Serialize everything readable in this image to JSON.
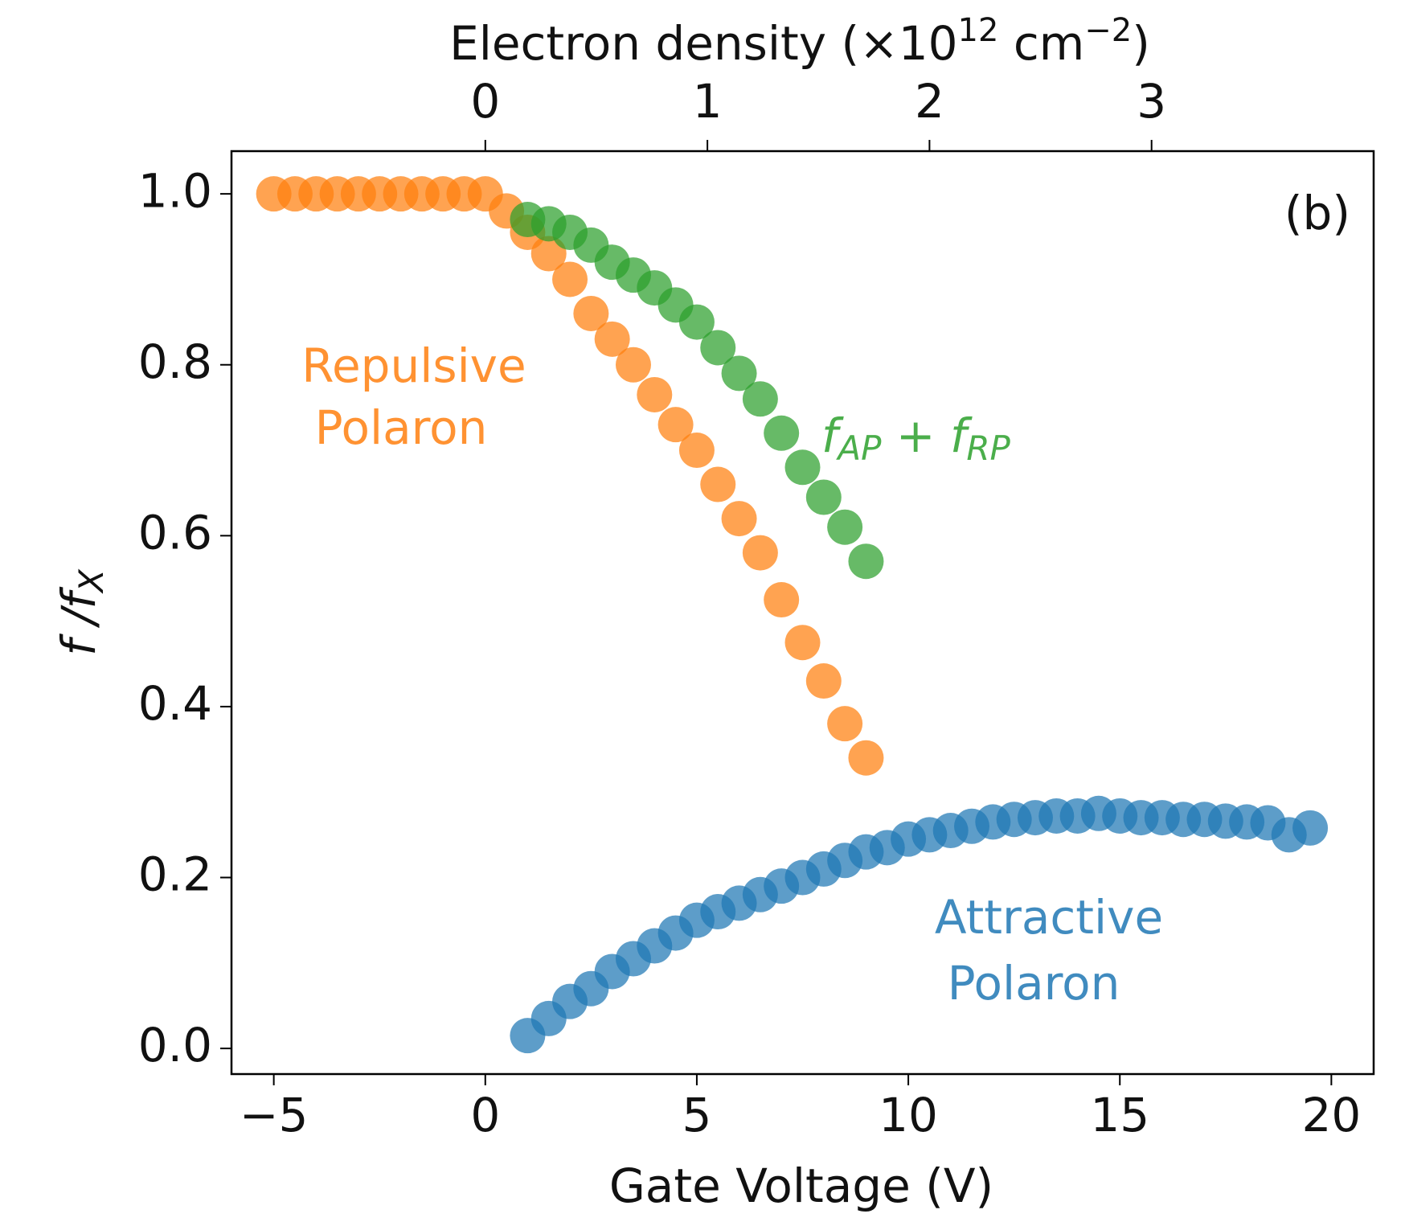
{
  "chart_data": {
    "type": "scatter",
    "xlabel": "Gate Voltage (V)",
    "ylabel": [
      "f /f",
      "X"
    ],
    "top_xlabel": [
      "Electron density (×10",
      "12",
      " cm",
      "−2",
      ")"
    ],
    "panel_label": "(b)",
    "xlim": [
      -6,
      21
    ],
    "xticks": [
      {
        "value": -5,
        "label": "−5"
      },
      0,
      5,
      10,
      15,
      20
    ],
    "ylim": [
      -0.03,
      1.05
    ],
    "yticks": [
      {
        "value": 0,
        "label": "0.0"
      },
      0.2,
      0.4,
      0.6,
      0.8,
      {
        "value": 1,
        "label": "1.0"
      }
    ],
    "x2lim": [
      -1.143,
      4.0
    ],
    "x2ticks": [
      0,
      1,
      2,
      3
    ],
    "series": [
      {
        "name": [
          "Repulsive",
          "Polaron"
        ],
        "color": "#ff7f0e",
        "x": [
          -5,
          -4.5,
          -4,
          -3.5,
          -3,
          -2.5,
          -2,
          -1.5,
          -1,
          -0.5,
          0,
          0.5,
          1,
          1.5,
          2,
          2.5,
          3,
          3.5,
          4,
          4.5,
          5,
          5.5,
          6,
          6.5,
          7,
          7.5,
          8,
          8.5,
          9
        ],
        "values": [
          1,
          1,
          1,
          1,
          1,
          1,
          1,
          1,
          1,
          1,
          1,
          0.98,
          0.955,
          0.93,
          0.9,
          0.86,
          0.83,
          0.8,
          0.765,
          0.73,
          0.7,
          0.66,
          0.62,
          0.58,
          0.525,
          0.475,
          0.43,
          0.38,
          0.34
        ]
      },
      {
        "name": [
          "f",
          "AP",
          " + f",
          "RP"
        ],
        "color": "#2ca02c",
        "x": [
          1,
          1.5,
          2,
          2.5,
          3,
          3.5,
          4,
          4.5,
          5,
          5.5,
          6,
          6.5,
          7,
          7.5,
          8,
          8.5,
          9
        ],
        "values": [
          0.97,
          0.965,
          0.955,
          0.94,
          0.92,
          0.905,
          0.89,
          0.87,
          0.85,
          0.82,
          0.79,
          0.76,
          0.72,
          0.68,
          0.645,
          0.61,
          0.57
        ]
      },
      {
        "name": [
          "Attractive",
          "Polaron"
        ],
        "color": "#1f77b4",
        "x": [
          1,
          1.5,
          2,
          2.5,
          3,
          3.5,
          4,
          4.5,
          5,
          5.5,
          6,
          6.5,
          7,
          7.5,
          8,
          8.5,
          9,
          9.5,
          10,
          10.5,
          11,
          11.5,
          12,
          12.5,
          13,
          13.5,
          14,
          14.5,
          15,
          15.5,
          16,
          16.5,
          17,
          17.5,
          18,
          18.5,
          19,
          19.5
        ],
        "values": [
          0.015,
          0.035,
          0.055,
          0.07,
          0.09,
          0.105,
          0.12,
          0.135,
          0.15,
          0.16,
          0.17,
          0.18,
          0.19,
          0.2,
          0.21,
          0.22,
          0.23,
          0.235,
          0.245,
          0.25,
          0.255,
          0.26,
          0.265,
          0.268,
          0.27,
          0.272,
          0.272,
          0.275,
          0.272,
          0.27,
          0.27,
          0.268,
          0.268,
          0.266,
          0.265,
          0.264,
          0.25,
          0.258
        ]
      }
    ]
  }
}
